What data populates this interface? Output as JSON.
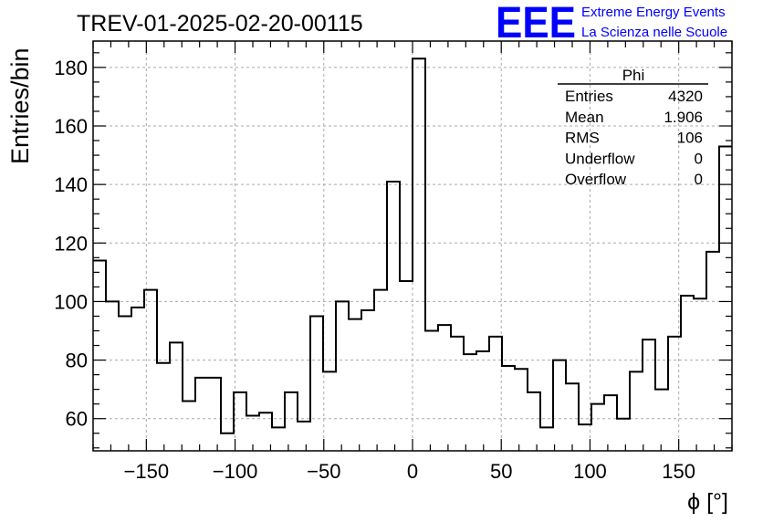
{
  "chart_data": {
    "type": "histogram",
    "title": "TREV-01-2025-02-20-00115",
    "xlabel": "ϕ [°]",
    "ylabel": "Entries/bin",
    "xlim": [
      -180,
      180
    ],
    "ylim": [
      49,
      189
    ],
    "grid": true,
    "bin_width": 7.2,
    "x_ticks": [
      -150,
      -100,
      -50,
      0,
      50,
      100,
      150
    ],
    "x_tick_labels": [
      "−150",
      "−100",
      "−50",
      "0",
      "50",
      "100",
      "150"
    ],
    "y_ticks": [
      60,
      80,
      100,
      120,
      140,
      160,
      180
    ],
    "y_tick_labels": [
      "60",
      "80",
      "100",
      "120",
      "140",
      "160",
      "180"
    ],
    "values": [
      114,
      100,
      95,
      98,
      104,
      79,
      86,
      66,
      74,
      74,
      55,
      69,
      61,
      62,
      57,
      69,
      59,
      95,
      76,
      100,
      94,
      97,
      104,
      141,
      107,
      183,
      90,
      92,
      88,
      82,
      83,
      88,
      78,
      77,
      69,
      57,
      80,
      72,
      58,
      65,
      68,
      60,
      76,
      87,
      70,
      88,
      102,
      101,
      117,
      153
    ]
  },
  "stats_box": {
    "name": "Phi",
    "rows": [
      {
        "label": "Entries",
        "value": "4320"
      },
      {
        "label": "Mean",
        "value": "1.906"
      },
      {
        "label": "RMS",
        "value": "106"
      },
      {
        "label": "Underflow",
        "value": "0"
      },
      {
        "label": "Overflow",
        "value": "0"
      }
    ]
  },
  "logo": {
    "mark": "EEE",
    "line1": "Extreme Energy Events",
    "line2": "La Scienza nelle Scuole"
  },
  "colors": {
    "logo": "#0000ff",
    "grid": "#aaaaaa",
    "line": "#000000"
  }
}
